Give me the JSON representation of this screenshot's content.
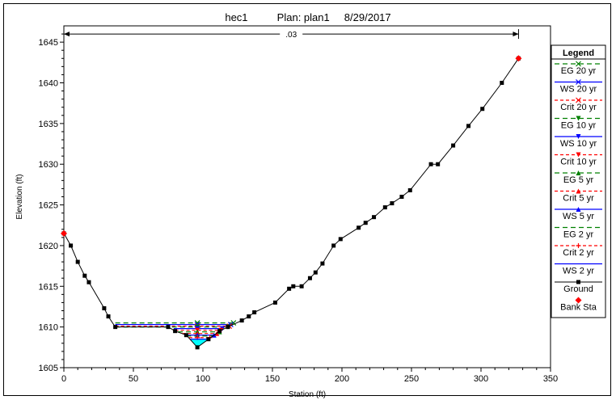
{
  "header": {
    "plot_name": "hec1",
    "plan": "Plan: plan1",
    "date": "8/29/2017"
  },
  "chart_data": {
    "type": "line",
    "title": "hec1    Plan: plan1    8/29/2017",
    "xlabel": "Station (ft)",
    "ylabel": "Elevation (ft)",
    "xlim": [
      0,
      350
    ],
    "ylim": [
      1605,
      1647
    ],
    "x_ticks": [
      0,
      50,
      100,
      150,
      200,
      250,
      300,
      350
    ],
    "y_ticks": [
      1605,
      1610,
      1615,
      1620,
      1625,
      1630,
      1635,
      1640,
      1645
    ],
    "grid": false,
    "legend_placement": "right",
    "legend_title": "Legend",
    "annotation": {
      "text": ".03",
      "x_from": 0,
      "x_to": 327,
      "y": 1646
    },
    "ground": {
      "name": "Ground",
      "color": "#000000",
      "points": [
        [
          0,
          1621.5
        ],
        [
          5,
          1620
        ],
        [
          10,
          1618
        ],
        [
          15,
          1616.3
        ],
        [
          18,
          1615.5
        ],
        [
          29,
          1612.3
        ],
        [
          32,
          1611.3
        ],
        [
          37,
          1610
        ],
        [
          75,
          1610
        ],
        [
          80,
          1609.5
        ],
        [
          88,
          1609
        ],
        [
          96,
          1607.5
        ],
        [
          104,
          1608.5
        ],
        [
          112,
          1609.5
        ],
        [
          118,
          1610
        ],
        [
          128,
          1610.8
        ],
        [
          133,
          1611.3
        ],
        [
          137,
          1611.8
        ],
        [
          152,
          1613
        ],
        [
          162,
          1614.7
        ],
        [
          165,
          1615
        ],
        [
          171,
          1615
        ],
        [
          177,
          1616
        ],
        [
          181,
          1616.7
        ],
        [
          186,
          1617.8
        ],
        [
          194,
          1620
        ],
        [
          199,
          1620.8
        ],
        [
          212,
          1622.2
        ],
        [
          217,
          1622.8
        ],
        [
          223,
          1623.5
        ],
        [
          231,
          1624.7
        ],
        [
          236,
          1625.2
        ],
        [
          243,
          1626
        ],
        [
          249,
          1626.8
        ],
        [
          264,
          1630
        ],
        [
          269,
          1630
        ],
        [
          280,
          1632.3
        ],
        [
          291,
          1634.7
        ],
        [
          301,
          1636.8
        ],
        [
          315,
          1640
        ],
        [
          327,
          1643
        ]
      ]
    },
    "bank_stations": {
      "name": "Bank Sta",
      "color": "#ff0000",
      "points": [
        [
          0,
          1621.5
        ],
        [
          327,
          1643
        ]
      ]
    },
    "series": [
      {
        "name": "EG 20 yr",
        "color": "#008000",
        "dash": "6,4",
        "marker": "x",
        "elev": 1610.5,
        "x_from": 37,
        "x_to": 122
      },
      {
        "name": "WS 20 yr",
        "color": "#0000ff",
        "dash": "",
        "marker": "x",
        "elev": 1610.3,
        "x_from": 37,
        "x_to": 120
      },
      {
        "name": "Crit 20 yr",
        "color": "#ff0000",
        "dash": "4,3",
        "marker": "x",
        "elev": 1610.1,
        "x_from": 37,
        "x_to": 119
      },
      {
        "name": "EG 10 yr",
        "color": "#008000",
        "dash": "6,4",
        "marker": "tri-down",
        "elev": 1610.0,
        "x_from": 37,
        "x_to": 118
      },
      {
        "name": "WS 10 yr",
        "color": "#0000ff",
        "dash": "",
        "marker": "tri-down",
        "elev": 1609.8,
        "x_from": 79,
        "x_to": 114
      },
      {
        "name": "Crit 10 yr",
        "color": "#ff0000",
        "dash": "4,3",
        "marker": "tri-down",
        "elev": 1609.6,
        "x_from": 80,
        "x_to": 113
      },
      {
        "name": "EG 5 yr",
        "color": "#008000",
        "dash": "6,4",
        "marker": "tri-up",
        "elev": 1609.4,
        "x_from": 82,
        "x_to": 112
      },
      {
        "name": "Crit 5 yr",
        "color": "#ff0000",
        "dash": "4,3",
        "marker": "tri-up",
        "elev": 1609.2,
        "x_from": 85,
        "x_to": 110
      },
      {
        "name": "WS 5 yr",
        "color": "#0000ff",
        "dash": "",
        "marker": "tri-up",
        "elev": 1609.0,
        "x_from": 87,
        "x_to": 108
      },
      {
        "name": "EG 2 yr",
        "color": "#008000",
        "dash": "6,4",
        "marker": "none",
        "elev": 1608.9,
        "x_from": 88,
        "x_to": 107
      },
      {
        "name": "Crit 2 yr",
        "color": "#ff0000",
        "dash": "4,3",
        "marker": "star",
        "elev": 1608.7,
        "x_from": 90,
        "x_to": 105
      },
      {
        "name": "WS 2 yr",
        "color": "#0000ff",
        "dash": "",
        "marker": "none",
        "elev": 1608.5,
        "x_from": 91,
        "x_to": 104
      }
    ],
    "water_fill": {
      "color": "#00ffff",
      "elev": 1608.5
    }
  }
}
